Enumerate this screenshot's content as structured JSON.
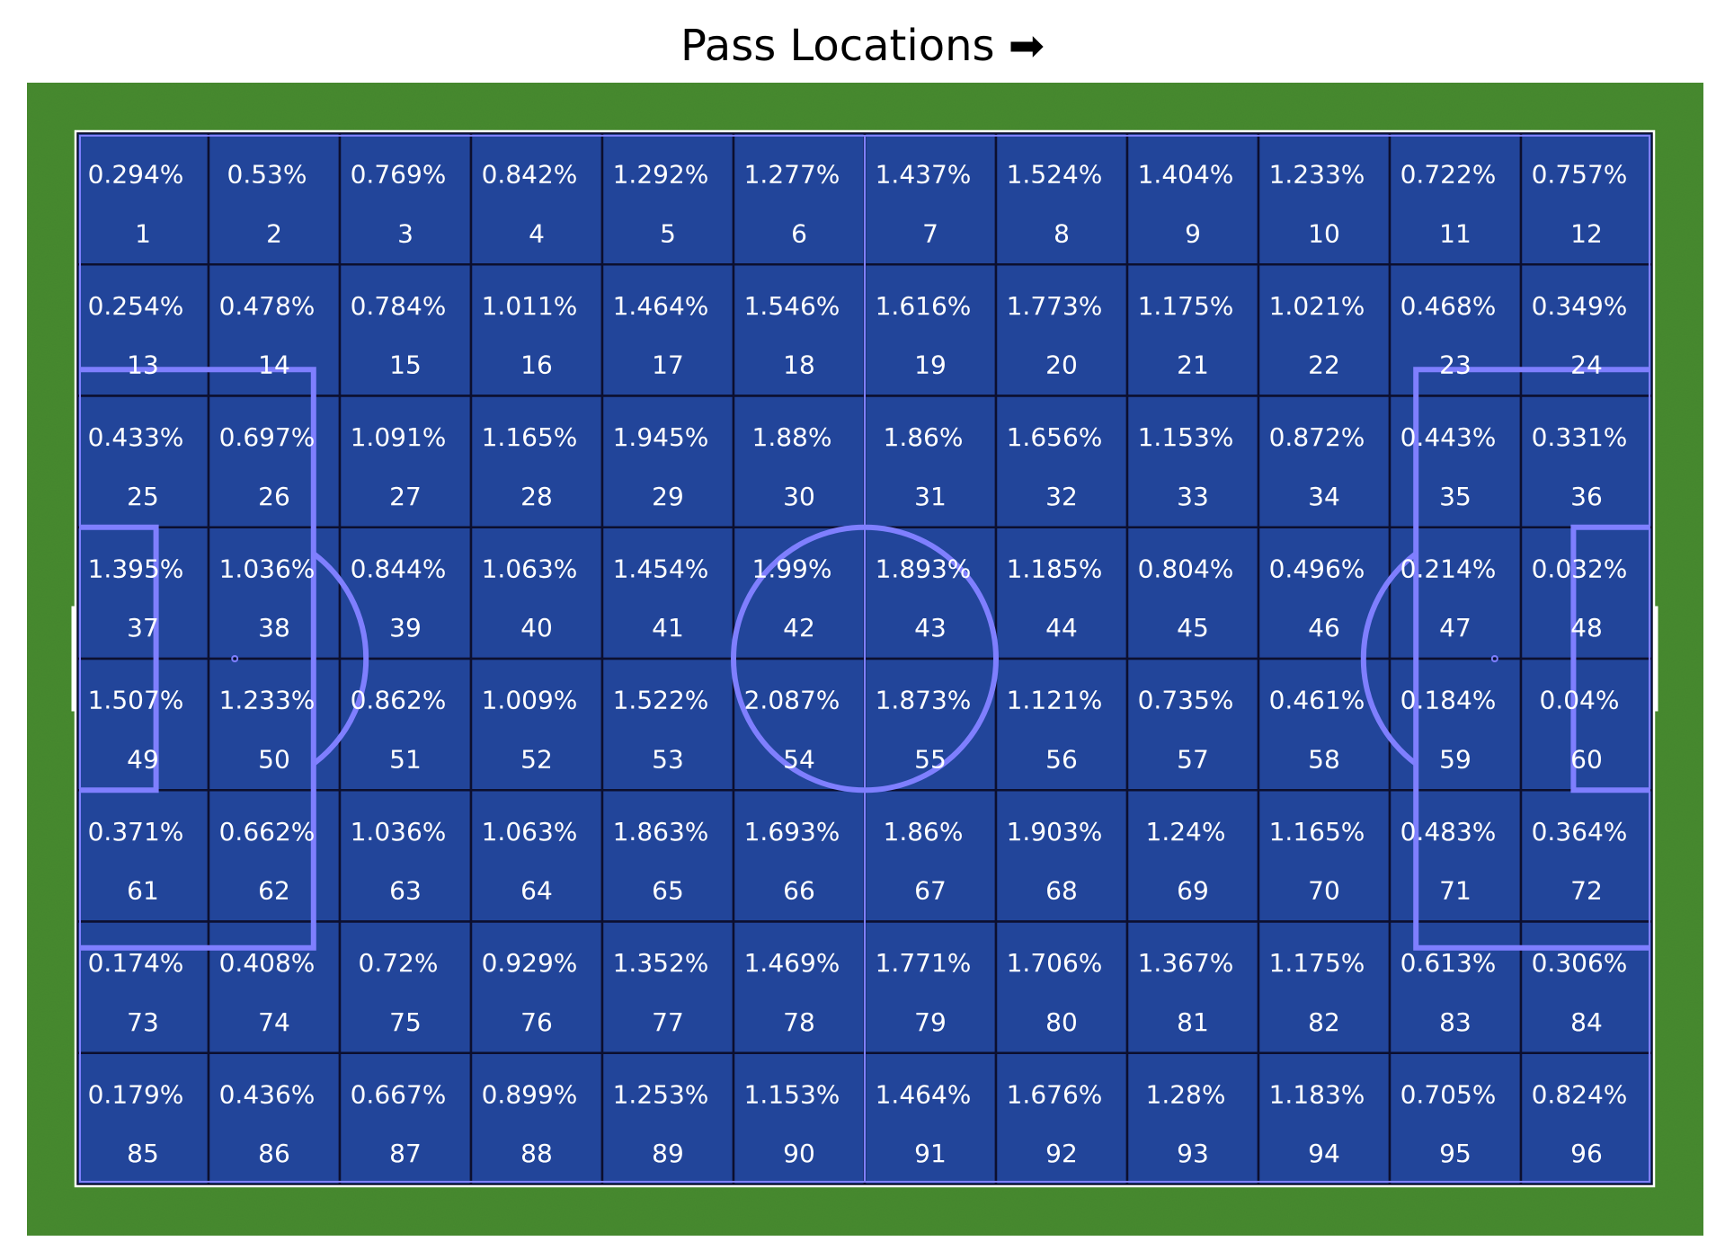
{
  "chart_data": {
    "type": "heatmap",
    "title": "Pass Locations ➡",
    "xlabel": "",
    "ylabel": "",
    "grid": {
      "rows": 8,
      "cols": 12
    },
    "zones": [
      1,
      2,
      3,
      4,
      5,
      6,
      7,
      8,
      9,
      10,
      11,
      12,
      13,
      14,
      15,
      16,
      17,
      18,
      19,
      20,
      21,
      22,
      23,
      24,
      25,
      26,
      27,
      28,
      29,
      30,
      31,
      32,
      33,
      34,
      35,
      36,
      37,
      38,
      39,
      40,
      41,
      42,
      43,
      44,
      45,
      46,
      47,
      48,
      49,
      50,
      51,
      52,
      53,
      54,
      55,
      56,
      57,
      58,
      59,
      60,
      61,
      62,
      63,
      64,
      65,
      66,
      67,
      68,
      69,
      70,
      71,
      72,
      73,
      74,
      75,
      76,
      77,
      78,
      79,
      80,
      81,
      82,
      83,
      84,
      85,
      86,
      87,
      88,
      89,
      90,
      91,
      92,
      93,
      94,
      95,
      96
    ],
    "value_labels": [
      "0.294%",
      "0.53%",
      "0.769%",
      "0.842%",
      "1.292%",
      "1.277%",
      "1.437%",
      "1.524%",
      "1.404%",
      "1.233%",
      "0.722%",
      "0.757%",
      "0.254%",
      "0.478%",
      "0.784%",
      "1.011%",
      "1.464%",
      "1.546%",
      "1.616%",
      "1.773%",
      "1.175%",
      "1.021%",
      "0.468%",
      "0.349%",
      "0.433%",
      "0.697%",
      "1.091%",
      "1.165%",
      "1.945%",
      "1.88%",
      "1.86%",
      "1.656%",
      "1.153%",
      "0.872%",
      "0.443%",
      "0.331%",
      "1.395%",
      "1.036%",
      "0.844%",
      "1.063%",
      "1.454%",
      "1.99%",
      "1.893%",
      "1.185%",
      "0.804%",
      "0.496%",
      "0.214%",
      "0.032%",
      "1.507%",
      "1.233%",
      "0.862%",
      "1.009%",
      "1.522%",
      "2.087%",
      "1.873%",
      "1.121%",
      "0.735%",
      "0.461%",
      "0.184%",
      "0.04%",
      "0.371%",
      "0.662%",
      "1.036%",
      "1.063%",
      "1.863%",
      "1.693%",
      "1.86%",
      "1.903%",
      "1.24%",
      "1.165%",
      "0.483%",
      "0.364%",
      "0.174%",
      "0.408%",
      "0.72%",
      "0.929%",
      "1.352%",
      "1.469%",
      "1.771%",
      "1.706%",
      "1.367%",
      "1.175%",
      "0.613%",
      "0.306%",
      "0.179%",
      "0.436%",
      "0.667%",
      "0.899%",
      "1.253%",
      "1.153%",
      "1.464%",
      "1.676%",
      "1.28%",
      "1.183%",
      "0.705%",
      "0.824%"
    ],
    "colors": {
      "grass": "#478b30",
      "cell_fill": "#22459a",
      "cell_border": "#0c0f2e",
      "pitch_line": "#ffffff",
      "marking": "#7f7ffe",
      "text": "#ffffff",
      "title": "#000000"
    }
  }
}
